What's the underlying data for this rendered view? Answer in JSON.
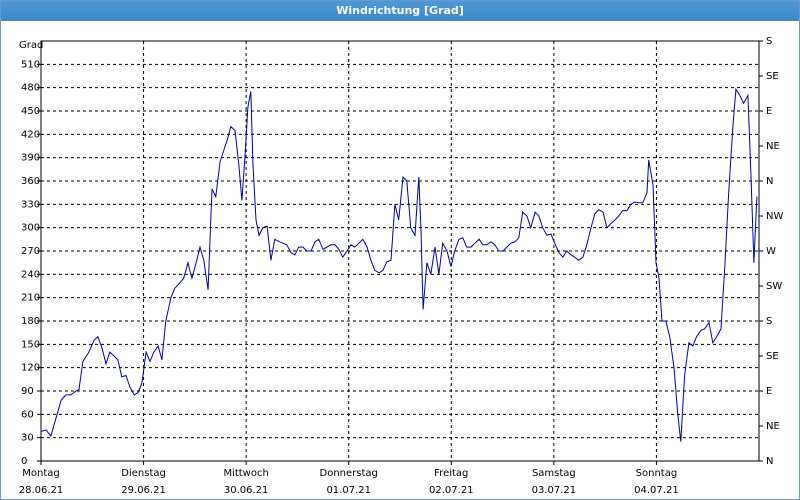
{
  "chart_data": {
    "type": "line",
    "title": "Windrichtung [Grad]",
    "ylabel": "Grad",
    "xlim": [
      0,
      168
    ],
    "xticks": [
      {
        "value": 0,
        "label": "Montag",
        "date": "28.06.21"
      },
      {
        "value": 24,
        "label": "Dienstag",
        "date": "29.06.21"
      },
      {
        "value": 48,
        "label": "Mittwoch",
        "date": "30.06.21"
      },
      {
        "value": 72,
        "label": "Donnerstag",
        "date": "01.07.21"
      },
      {
        "value": 96,
        "label": "Freitag",
        "date": "02.07.21"
      },
      {
        "value": 120,
        "label": "Samstag",
        "date": "03.07.21"
      },
      {
        "value": 144,
        "label": "Sonntag",
        "date": "04.07.21"
      }
    ],
    "ylim": [
      0,
      540
    ],
    "yticks": [
      0,
      30,
      60,
      90,
      120,
      150,
      180,
      210,
      240,
      270,
      300,
      330,
      360,
      390,
      420,
      450,
      480,
      510
    ],
    "y2lim": [
      0,
      540
    ],
    "y2ticks": [
      {
        "value": 0,
        "label": "N"
      },
      {
        "value": 45,
        "label": "NE"
      },
      {
        "value": 90,
        "label": "E"
      },
      {
        "value": 135,
        "label": "SE"
      },
      {
        "value": 180,
        "label": "S"
      },
      {
        "value": 225,
        "label": "SW"
      },
      {
        "value": 270,
        "label": "W"
      },
      {
        "value": 315,
        "label": "NW"
      },
      {
        "value": 360,
        "label": "N"
      },
      {
        "value": 405,
        "label": "NE"
      },
      {
        "value": 450,
        "label": "E"
      },
      {
        "value": 495,
        "label": "SE"
      },
      {
        "value": 540,
        "label": "S"
      }
    ],
    "grid": true,
    "series": [
      {
        "color": "#0000a0",
        "x": [
          0,
          1.2,
          2.3,
          3.5,
          4.7,
          5.8,
          7.0,
          8.2,
          8.9,
          9.8,
          11.2,
          12.4,
          13.3,
          14.3,
          15.2,
          16.1,
          17.1,
          18.0,
          18.9,
          19.9,
          20.8,
          21.8,
          22.7,
          23.6,
          24.6,
          25.5,
          26.4,
          27.4,
          28.3,
          29.2,
          30.4,
          31.3,
          32.3,
          33.4,
          34.4,
          35.3,
          36.3,
          37.2,
          38.1,
          39.1,
          40.0,
          40.9,
          41.9,
          42.8,
          43.7,
          44.4,
          45.4,
          46.3,
          47.0,
          47.7,
          48.4,
          49.1,
          49.6,
          50.3,
          51.0,
          51.9,
          52.9,
          53.8,
          54.7,
          55.7,
          56.6,
          57.5,
          58.5,
          59.4,
          60.3,
          61.3,
          62.2,
          63.2,
          64.1,
          65.0,
          66.0,
          66.9,
          67.8,
          68.8,
          69.7,
          70.6,
          71.6,
          72.5,
          73.4,
          74.4,
          75.3,
          76.3,
          77.2,
          78.1,
          79.1,
          80.0,
          80.9,
          81.9,
          82.8,
          83.7,
          84.7,
          85.6,
          86.5,
          87.5,
          88.4,
          88.9,
          89.4,
          90.3,
          91.2,
          92.2,
          93.1,
          94.0,
          95.0,
          95.9,
          96.8,
          97.8,
          98.7,
          99.6,
          100.6,
          101.5,
          102.5,
          103.4,
          104.3,
          105.3,
          106.2,
          107.1,
          108.1,
          109.0,
          109.9,
          110.9,
          111.8,
          112.7,
          113.7,
          114.6,
          115.6,
          116.5,
          117.4,
          118.4,
          119.3,
          120.2,
          121.2,
          122.1,
          123.0,
          124.0,
          124.9,
          125.8,
          126.8,
          127.7,
          128.7,
          129.6,
          130.5,
          131.5,
          132.4,
          133.3,
          134.3,
          135.2,
          136.1,
          137.1,
          138.0,
          138.9,
          139.9,
          140.8,
          141.8,
          142.2,
          143.2,
          143.9,
          144.6,
          145.3,
          146.2,
          147.1,
          148.1,
          149.0,
          149.7,
          150.6,
          151.6,
          152.5,
          153.4,
          154.4,
          155.3,
          156.3,
          157.2,
          158.1,
          159.1,
          160.0,
          160.9,
          161.9,
          162.6,
          163.5,
          164.4,
          165.4,
          166.1,
          166.8,
          167.5
        ],
        "values": [
          38,
          40,
          32,
          55,
          78,
          85,
          85,
          90,
          92,
          128,
          140,
          155,
          160,
          145,
          125,
          140,
          135,
          130,
          108,
          110,
          95,
          85,
          88,
          100,
          140,
          128,
          140,
          148,
          130,
          180,
          210,
          222,
          228,
          235,
          255,
          235,
          255,
          275,
          258,
          220,
          350,
          340,
          385,
          400,
          415,
          430,
          425,
          380,
          335,
          390,
          455,
          475,
          380,
          310,
          290,
          300,
          302,
          258,
          285,
          282,
          280,
          278,
          268,
          265,
          275,
          275,
          270,
          270,
          282,
          285,
          272,
          275,
          278,
          278,
          272,
          262,
          270,
          278,
          275,
          280,
          285,
          275,
          258,
          245,
          242,
          245,
          256,
          258,
          330,
          310,
          365,
          360,
          300,
          290,
          365,
          300,
          195,
          255,
          240,
          275,
          240,
          280,
          270,
          250,
          270,
          285,
          287,
          275,
          275,
          280,
          285,
          278,
          278,
          282,
          278,
          270,
          270,
          275,
          280,
          282,
          287,
          320,
          315,
          300,
          320,
          315,
          300,
          290,
          292,
          280,
          268,
          262,
          270,
          265,
          262,
          258,
          262,
          278,
          300,
          318,
          323,
          320,
          300,
          305,
          310,
          315,
          322,
          322,
          330,
          333,
          332,
          332,
          345,
          387,
          355,
          255,
          235,
          180,
          180,
          160,
          120,
          60,
          25,
          110,
          152,
          148,
          160,
          168,
          170,
          178,
          152,
          160,
          170,
          250,
          345,
          430,
          478,
          470,
          460,
          470,
          370,
          255,
          340
        ]
      }
    ]
  }
}
